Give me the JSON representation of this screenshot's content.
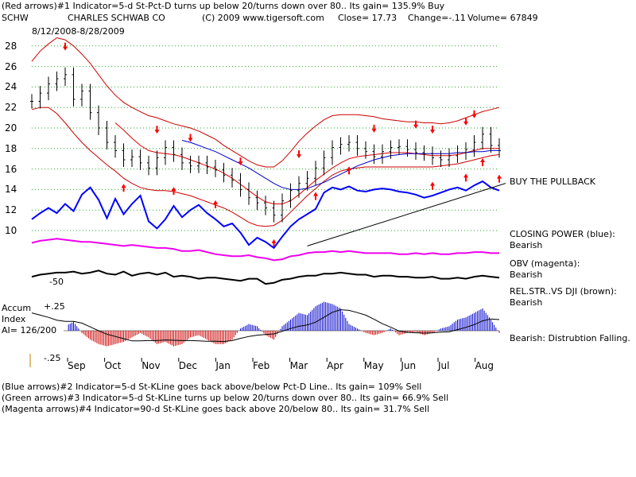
{
  "header": {
    "line1": "(Red arrows)#1 Indicator=5-d St-Pct-D turns up below 20/turns down over 80..  Its gain= 135.9% Buy",
    "symbol": "SCHW",
    "company": "CHARLES SCHWAB CO",
    "copyright": "(C) 2009 www.tigersoft.com",
    "close": "Close=  17.73",
    "change": "Change=-.11",
    "volume": "Volume=  67849",
    "date_range": "8/12/2008-8/28/2009"
  },
  "right_labels": {
    "buy_pullback": "BUY THE PULLBACK",
    "closing_power": "CLOSING POWER (blue):",
    "closing_power_val": "Bearish",
    "obv": "OBV (magenta):",
    "obv_val": "Bearish",
    "relstr": "REL.STR..VS DJI (brown):",
    "relstr_val": "Bearish",
    "accum_note": "Bearish:  Distrubtion Falling."
  },
  "left_labels": {
    "accum": "Accum",
    "index": "Index",
    "ai": "AI= 126/200",
    "plus25": "+.25",
    "minus25": "-.25",
    "minus50": "-50"
  },
  "footer": {
    "blue": "(Blue arrows)#2 Indicator=5-d St-KLine goes back above/below Pct-D Line..  Its gain= 109% Sell",
    "green": "(Green arrows)#3 Indicator=5-d St-KLine turns up below 20/turns down over 80..  Its gain= 66.9% Sell",
    "magenta": "(Magenta arrows)#4 Indicator=90-d St-KLine goes back above 20/below 80..  Its gain= 31.7% Sell"
  },
  "chart_data": {
    "type": "line",
    "title": "SCHW CHARLES SCHWAB CO",
    "ylim": [
      8,
      29
    ],
    "y_ticks": [
      10,
      12,
      14,
      16,
      18,
      20,
      22,
      24,
      26,
      28
    ],
    "months": [
      "Sep",
      "Oct",
      "Nov",
      "Dec",
      "Jan",
      "Feb",
      "Mar",
      "Apr",
      "May",
      "Jun",
      "Jul",
      "Aug"
    ],
    "price_close_weekly": [
      22.6,
      23.4,
      24.3,
      24.8,
      25.2,
      22.8,
      23.6,
      21.5,
      20.0,
      18.6,
      17.8,
      16.9,
      17.2,
      16.6,
      16.1,
      17.1,
      18.1,
      17.4,
      16.6,
      16.3,
      16.6,
      16.2,
      15.9,
      15.4,
      14.9,
      14.0,
      13.2,
      12.7,
      12.2,
      11.5,
      12.9,
      13.9,
      14.6,
      15.1,
      16.1,
      17.1,
      18.1,
      18.4,
      18.6,
      18.0,
      17.7,
      17.2,
      17.7,
      18.1,
      18.2,
      17.9,
      17.6,
      17.5,
      17.1,
      16.9,
      17.3,
      17.6,
      17.9,
      18.6,
      19.4,
      18.3,
      17.8
    ],
    "upper_band": [
      26.5,
      27.5,
      28.2,
      28.8,
      28.6,
      28.0,
      27.2,
      26.3,
      25.2,
      24.1,
      23.2,
      22.5,
      22.0,
      21.6,
      21.2,
      21.0,
      20.7,
      20.4,
      20.2,
      20.0,
      19.7,
      19.3,
      18.9,
      18.3,
      17.8,
      17.3,
      16.8,
      16.4,
      16.2,
      16.2,
      16.8,
      17.7,
      18.7,
      19.5,
      20.2,
      20.8,
      21.2,
      21.3,
      21.3,
      21.3,
      21.2,
      21.1,
      20.9,
      20.8,
      20.7,
      20.6,
      20.6,
      20.5,
      20.5,
      20.4,
      20.5,
      20.7,
      21.0,
      21.3,
      21.6,
      21.8,
      22.0
    ],
    "lower_band": [
      21.8,
      22.0,
      22.0,
      21.4,
      20.5,
      19.5,
      18.6,
      17.8,
      17.1,
      16.4,
      15.8,
      15.1,
      14.6,
      14.2,
      14.0,
      13.9,
      13.9,
      13.8,
      13.6,
      13.4,
      13.1,
      12.8,
      12.5,
      12.2,
      11.8,
      11.3,
      10.8,
      10.5,
      10.4,
      10.5,
      11.0,
      11.8,
      12.6,
      13.4,
      14.1,
      14.8,
      15.4,
      15.8,
      16.0,
      16.1,
      16.2,
      16.2,
      16.2,
      16.2,
      16.2,
      16.2,
      16.2,
      16.2,
      16.2,
      16.3,
      16.4,
      16.5,
      16.7,
      16.9,
      17.1,
      17.3,
      17.4
    ],
    "ma_red": [
      null,
      null,
      null,
      null,
      null,
      null,
      null,
      null,
      null,
      null,
      20.5,
      19.8,
      19.0,
      18.3,
      17.8,
      17.6,
      17.5,
      17.4,
      17.2,
      16.9,
      16.6,
      16.3,
      16.0,
      15.6,
      15.1,
      14.5,
      13.9,
      13.3,
      12.8,
      12.6,
      12.6,
      12.9,
      13.5,
      14.2,
      14.9,
      15.5,
      16.1,
      16.6,
      17.0,
      17.2,
      17.3,
      17.4,
      17.5,
      17.6,
      17.6,
      17.6,
      17.5,
      17.4,
      17.3,
      17.3,
      17.3,
      17.4,
      17.6,
      17.8,
      18.0,
      18.0,
      18.0
    ],
    "ma_blue": [
      null,
      null,
      null,
      null,
      null,
      null,
      null,
      null,
      null,
      null,
      null,
      null,
      null,
      null,
      null,
      null,
      null,
      null,
      18.8,
      18.6,
      18.3,
      18.0,
      17.7,
      17.3,
      16.9,
      16.5,
      16.1,
      15.6,
      15.1,
      14.6,
      14.2,
      14.0,
      14.0,
      14.1,
      14.4,
      14.7,
      15.1,
      15.5,
      15.9,
      16.3,
      16.6,
      16.9,
      17.1,
      17.3,
      17.4,
      17.5,
      17.5,
      17.5,
      17.5,
      17.5,
      17.5,
      17.6,
      17.6,
      17.7,
      17.7,
      17.8,
      17.8
    ],
    "closing_power_blue": [
      11.1,
      11.7,
      12.2,
      11.7,
      12.6,
      11.9,
      13.5,
      14.2,
      13.0,
      11.2,
      13.1,
      11.6,
      12.6,
      13.4,
      10.9,
      10.2,
      11.1,
      12.4,
      11.3,
      12.0,
      12.5,
      11.7,
      11.1,
      10.4,
      10.7,
      9.8,
      8.6,
      9.3,
      8.9,
      8.3,
      9.4,
      10.4,
      11.1,
      11.6,
      12.1,
      13.7,
      14.2,
      14.0,
      14.3,
      13.9,
      13.8,
      14.0,
      14.1,
      14.0,
      13.8,
      13.7,
      13.5,
      13.2,
      13.4,
      13.7,
      14.0,
      14.2,
      13.9,
      14.4,
      14.8,
      14.2,
      13.9
    ],
    "obv_magenta": [
      8.8,
      9.0,
      9.1,
      9.2,
      9.1,
      9.0,
      8.9,
      8.9,
      8.8,
      8.7,
      8.6,
      8.5,
      8.6,
      8.5,
      8.4,
      8.3,
      8.3,
      8.2,
      8.0,
      8.0,
      8.1,
      7.9,
      7.7,
      7.6,
      7.5,
      7.5,
      7.6,
      7.4,
      7.3,
      7.1,
      7.2,
      7.5,
      7.6,
      7.8,
      7.9,
      7.9,
      8.0,
      7.9,
      8.0,
      7.9,
      7.8,
      7.8,
      7.8,
      7.8,
      7.7,
      7.7,
      7.8,
      7.7,
      7.8,
      7.7,
      7.7,
      7.8,
      7.8,
      7.9,
      7.9,
      7.8,
      7.8
    ],
    "relstr_brown": [
      5.5,
      5.7,
      5.8,
      5.9,
      5.9,
      6.0,
      5.8,
      5.9,
      6.1,
      5.8,
      5.7,
      6.0,
      5.6,
      5.8,
      5.9,
      5.7,
      5.9,
      5.5,
      5.6,
      5.5,
      5.3,
      5.4,
      5.4,
      5.3,
      5.2,
      5.1,
      5.3,
      5.3,
      4.8,
      4.9,
      5.2,
      5.3,
      5.5,
      5.6,
      5.6,
      5.8,
      5.8,
      5.9,
      5.8,
      5.7,
      5.7,
      5.5,
      5.6,
      5.6,
      5.5,
      5.5,
      5.4,
      5.4,
      5.5,
      5.3,
      5.3,
      5.4,
      5.3,
      5.5,
      5.6,
      5.5,
      5.4
    ],
    "accum_index": [
      0.16,
      0.12,
      0.08,
      0.02,
      0.04,
      0.08,
      -0.02,
      -0.08,
      -0.12,
      -0.14,
      -0.12,
      -0.1,
      -0.06,
      -0.02,
      -0.06,
      -0.12,
      -0.1,
      -0.14,
      -0.12,
      -0.06,
      -0.04,
      -0.08,
      -0.12,
      -0.12,
      -0.08,
      0.02,
      0.06,
      0.04,
      -0.04,
      -0.08,
      0.04,
      0.1,
      0.16,
      0.14,
      0.22,
      0.26,
      0.24,
      0.2,
      0.06,
      0.02,
      -0.02,
      -0.04,
      -0.02,
      0.02,
      -0.04,
      -0.02,
      -0.01,
      -0.04,
      -0.02,
      0.02,
      0.04,
      0.1,
      0.12,
      0.16,
      0.2,
      0.1,
      -0.02
    ],
    "accum_ylim": [
      -0.25,
      0.25
    ],
    "red_arrow_weeks_down": [
      4,
      15,
      19,
      25,
      32,
      41,
      46,
      48,
      52,
      53
    ],
    "red_arrow_weeks_up": [
      11,
      17,
      22,
      29,
      34,
      38,
      48,
      52,
      54,
      56
    ],
    "trendline": {
      "from_week": 33,
      "from_value": 8.5,
      "to_week": 57,
      "to_value": 14.6
    }
  }
}
